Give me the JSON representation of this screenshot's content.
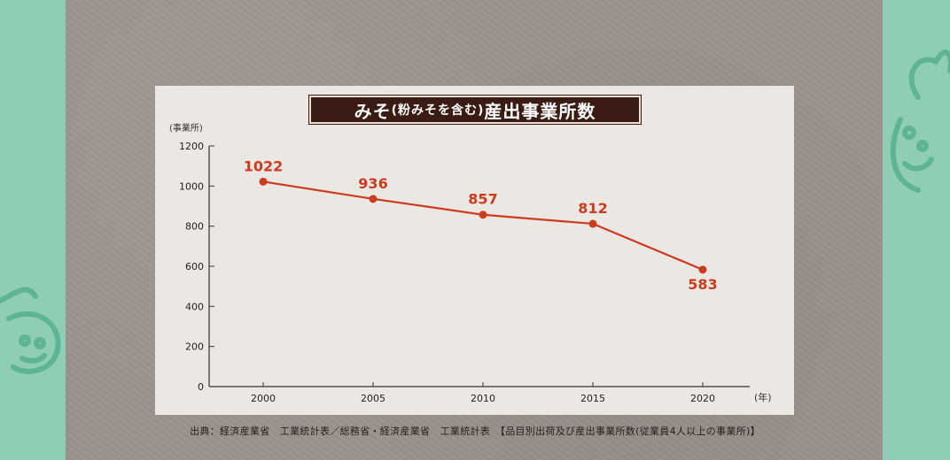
{
  "title": {
    "main_prefix": "みそ",
    "small": "(粉みそを含む)",
    "main_suffix": "産出事業所数"
  },
  "y_unit_label": "(事業所)",
  "x_unit_label": "(年)",
  "source_text": "出典：経済産業省　工業統計表／総務省・経済産業省　工業統計表　【品目別出荷及び産出事業所数(従業員4人以上の事業所)】",
  "colors": {
    "line": "#cc3b1f",
    "title_bg": "#3a1c14",
    "side_bg": "#8fcdb4",
    "panel_bg": "#ebe8e4"
  },
  "chart_data": {
    "type": "line",
    "x": [
      "2000",
      "2005",
      "2010",
      "2015",
      "2020"
    ],
    "values": [
      1022,
      936,
      857,
      812,
      583
    ],
    "ylim": [
      0,
      1200
    ],
    "yticks": [
      0,
      200,
      400,
      600,
      800,
      1000,
      1200
    ],
    "title": "みそ(粉みそを含む)産出事業所数",
    "xlabel": "(年)",
    "ylabel": "(事業所)",
    "grid": false
  }
}
